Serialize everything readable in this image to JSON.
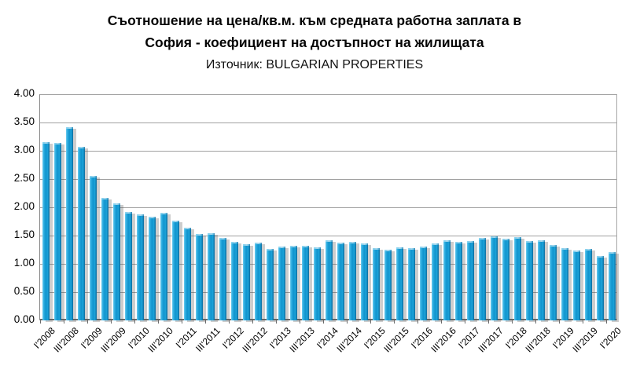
{
  "title": {
    "line1": "Съотношение на цена/кв.м. към средната работна заплата в",
    "line2": "София - коефициент на достъпност на жилищата",
    "source": "Източник: BULGARIAN PROPERTIES"
  },
  "chart_data": {
    "type": "bar",
    "title": "Съотношение на цена/кв.м. към средната работна заплата в София - коефициент на достъпност на жилищата",
    "subtitle": "Източник: BULGARIAN PROPERTIES",
    "categories": [
      "I'2008",
      "II'2008",
      "III'2008",
      "IV'2008",
      "I'2009",
      "II'2009",
      "III'2009",
      "IV'2009",
      "I'2010",
      "II'2010",
      "III'2010",
      "IV'2010",
      "I'2011",
      "II'2011",
      "III'2011",
      "IV'2011",
      "I'2012",
      "II'2012",
      "III'2012",
      "IV'2012",
      "I'2013",
      "II'2013",
      "III'2013",
      "IV'2013",
      "I'2014",
      "II'2014",
      "III'2014",
      "IV'2014",
      "I'2015",
      "II'2015",
      "III'2015",
      "IV'2015",
      "I'2016",
      "II'2016",
      "III'2016",
      "IV'2016",
      "I'2017",
      "II'2017",
      "III'2017",
      "IV'2017",
      "I'2018",
      "II'2018",
      "III'2018",
      "IV'2018",
      "I'2019",
      "II'2019",
      "III'2019",
      "IV'2019",
      "I'2020"
    ],
    "values": [
      3.15,
      3.14,
      3.41,
      3.07,
      2.56,
      2.16,
      2.07,
      1.91,
      1.88,
      1.83,
      1.9,
      1.76,
      1.64,
      1.53,
      1.54,
      1.46,
      1.39,
      1.35,
      1.37,
      1.27,
      1.31,
      1.32,
      1.32,
      1.29,
      1.41,
      1.37,
      1.39,
      1.36,
      1.28,
      1.25,
      1.29,
      1.28,
      1.31,
      1.36,
      1.42,
      1.39,
      1.4,
      1.46,
      1.48,
      1.45,
      1.47,
      1.4,
      1.42,
      1.34,
      1.28,
      1.23,
      1.26,
      1.14,
      1.21
    ],
    "x_tick_labels": [
      "I'2008",
      "III'2008",
      "I'2009",
      "III'2009",
      "I'2010",
      "III'2010",
      "I'2011",
      "III'2011",
      "I'2012",
      "III'2012",
      "I'2013",
      "III'2013",
      "I'2014",
      "III'2014",
      "I'2015",
      "III'2015",
      "I'2016",
      "III'2016",
      "I'2017",
      "III'2017",
      "I'2018",
      "III'2018",
      "I'2019",
      "III'2019",
      "I'2020"
    ],
    "y_tick_labels": [
      "4.00",
      "3.50",
      "3.00",
      "2.50",
      "2.00",
      "1.50",
      "1.00",
      "0.50",
      "0.00"
    ],
    "ylim": [
      0,
      4
    ],
    "grid": true,
    "legend": "none",
    "xlabel": "",
    "ylabel": "",
    "bar_color": "#1ba4da",
    "bar_highlight": "#6fcdef",
    "bar_edge_dark": "#0c6a9d",
    "shadow_color": "#bdbdbd",
    "gridline_color": "#a0a0a0",
    "text_color": "#000000"
  }
}
